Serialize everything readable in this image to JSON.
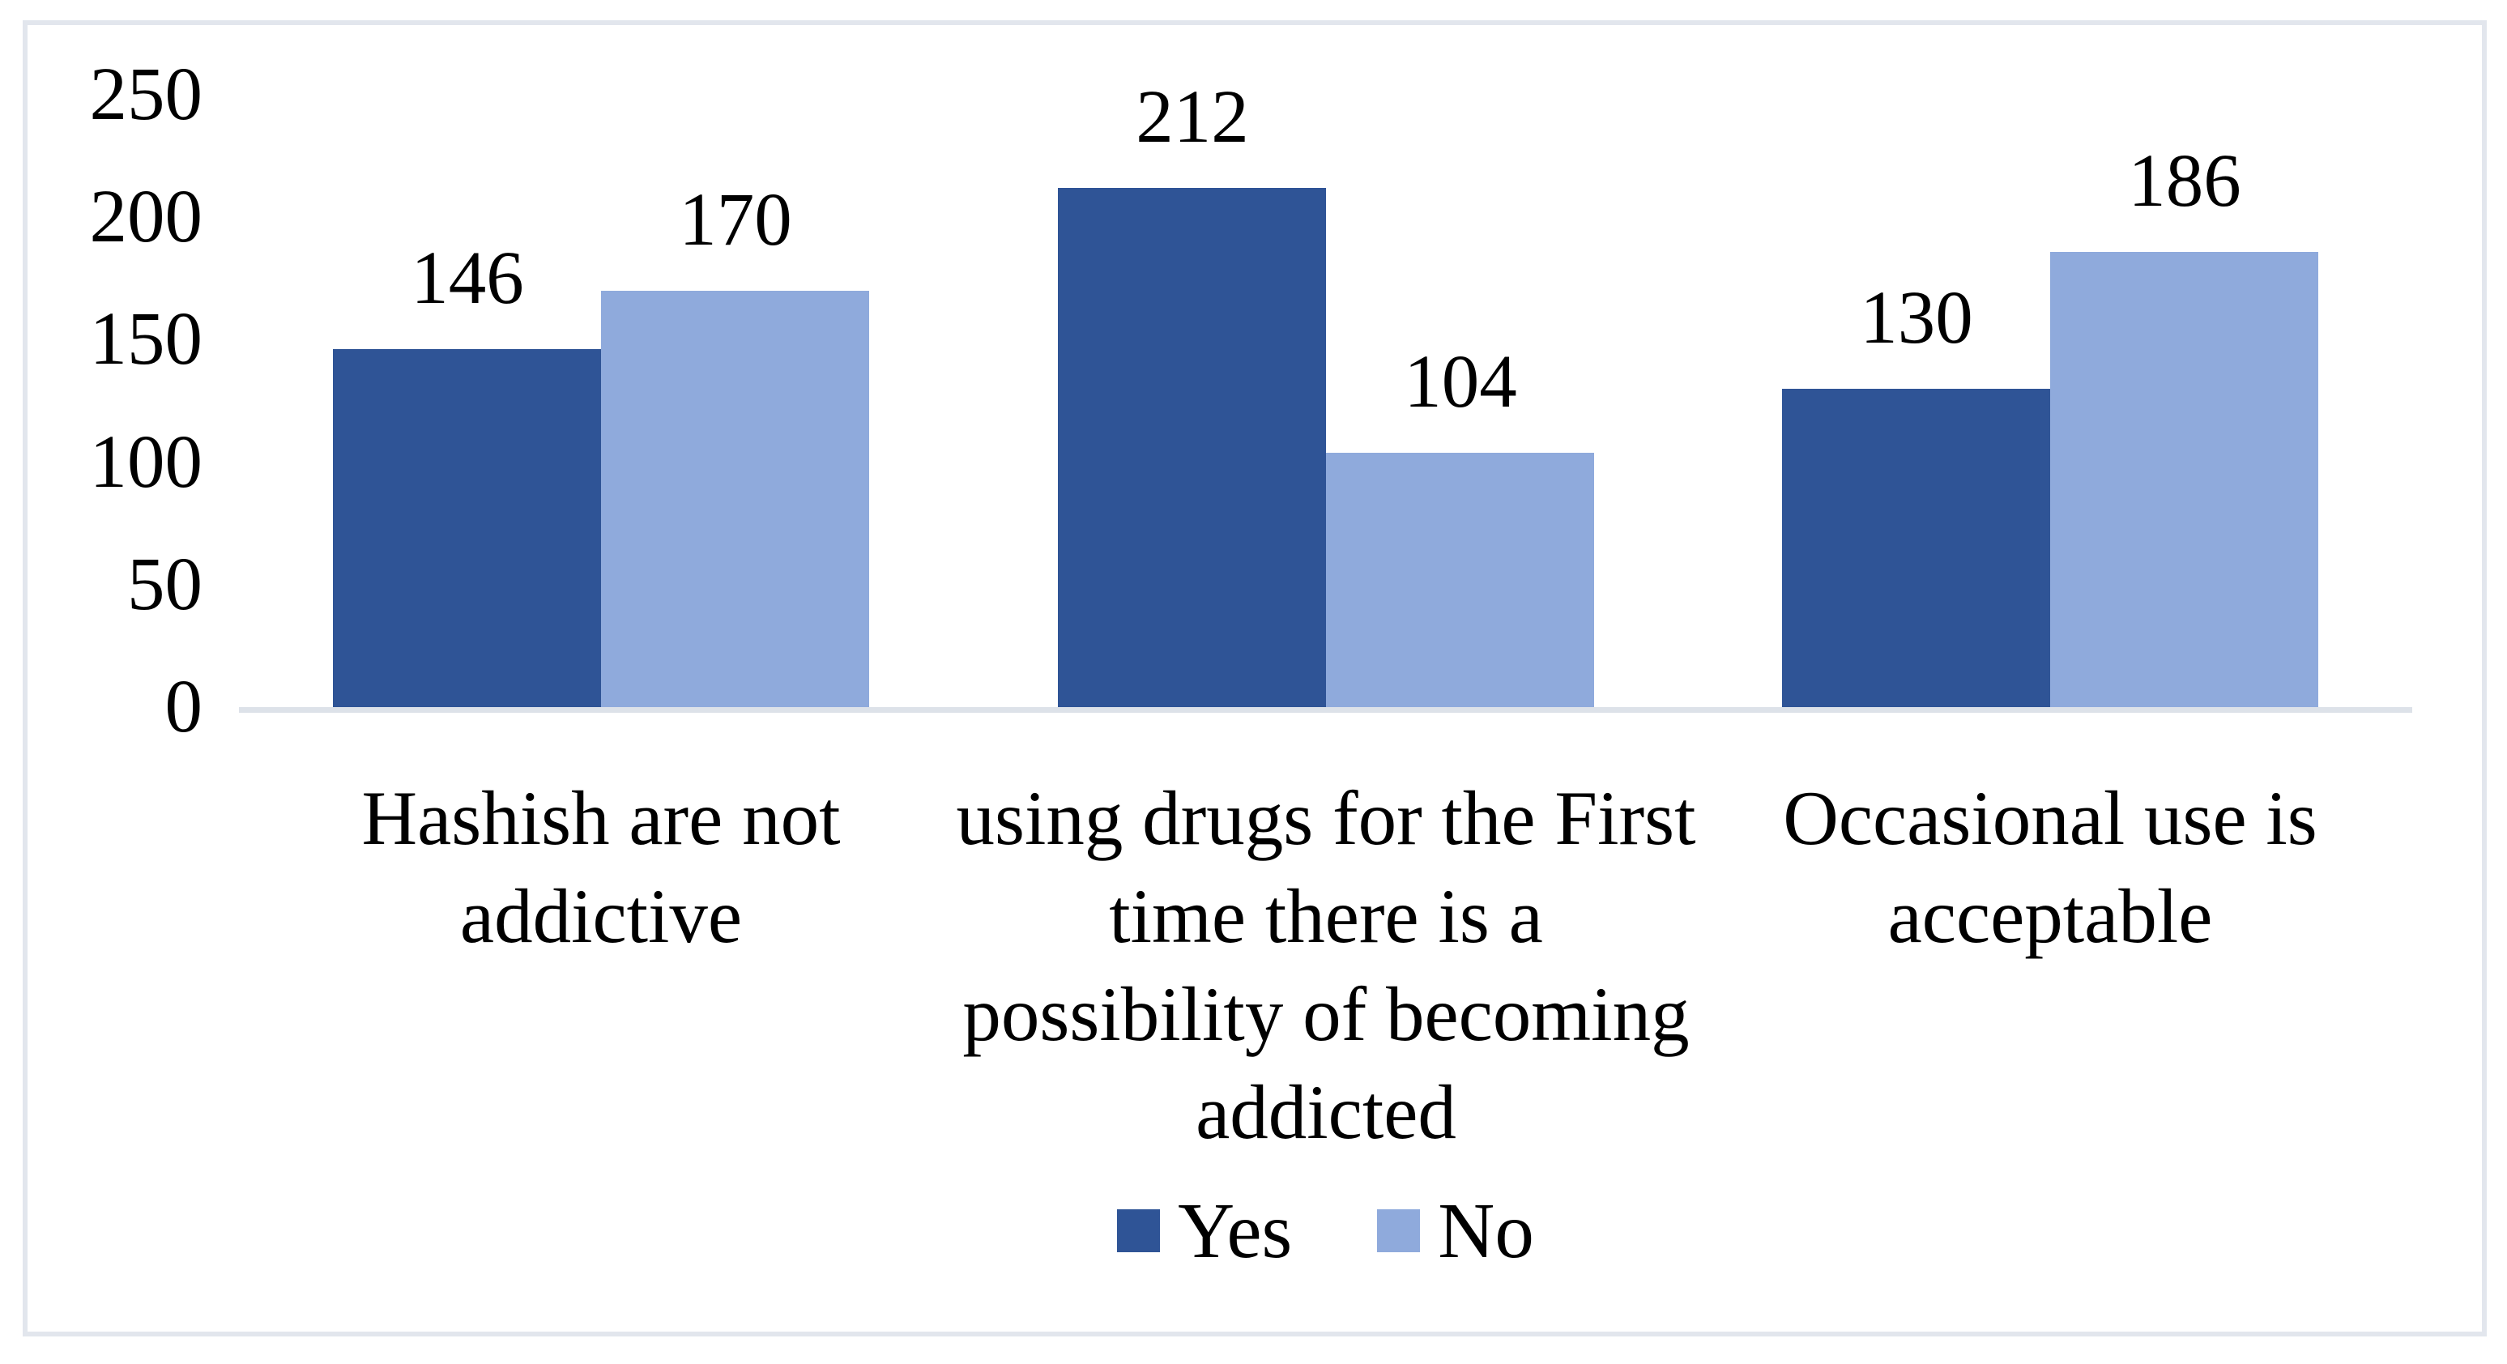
{
  "chart_data": {
    "type": "bar",
    "title": "",
    "xlabel": "",
    "ylabel": "",
    "categories": [
      "Hashish are not\naddictive",
      "using drugs for the First\ntime there is a\npossibility of becoming\naddicted",
      "Occasional use is\nacceptable"
    ],
    "series": [
      {
        "name": "Yes",
        "color": "#2f5496",
        "values": [
          146,
          212,
          130
        ]
      },
      {
        "name": "No",
        "color": "#8faadc",
        "values": [
          170,
          104,
          186
        ]
      }
    ],
    "ylim": [
      0,
      250
    ],
    "yticks": [
      0,
      50,
      100,
      150,
      200,
      250
    ],
    "grid": false,
    "data_labels": true,
    "legend_position": "bottom"
  },
  "colors": {
    "series_yes": "#2f5496",
    "series_no": "#8faadc",
    "axis_line": "#dde2e9",
    "frame_border": "#e2e6ed",
    "text": "#000000",
    "background": "#ffffff"
  }
}
